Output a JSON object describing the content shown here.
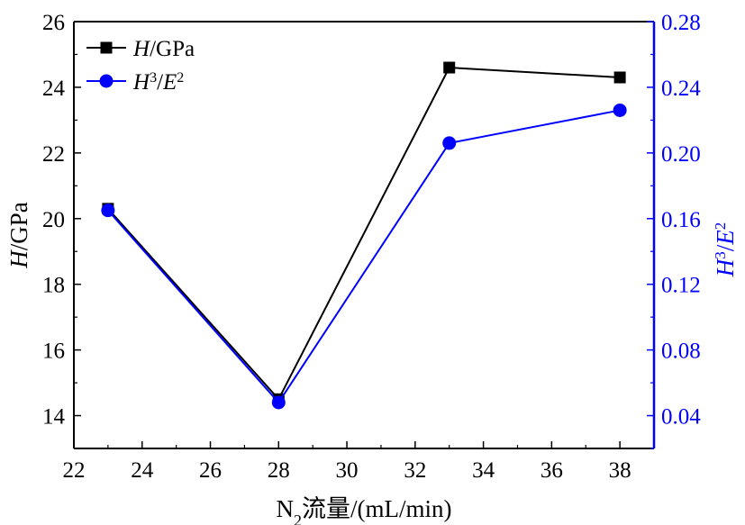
{
  "chart_data": {
    "type": "line",
    "x": [
      23,
      28,
      33,
      38
    ],
    "xlim": [
      22,
      39
    ],
    "xticks": [
      "22",
      "24",
      "26",
      "28",
      "30",
      "32",
      "34",
      "36",
      "38"
    ],
    "xlabel_parts": [
      "N",
      "2",
      "流量/(mL/min)"
    ],
    "left_axis": {
      "ylim": [
        13,
        26
      ],
      "yticks": [
        "14",
        "16",
        "18",
        "20",
        "22",
        "24",
        "26"
      ],
      "label_parts": [
        "H",
        "/GPa"
      ],
      "color": "#000000"
    },
    "right_axis": {
      "ylim": [
        0.02,
        0.28
      ],
      "yticks": [
        "0.04",
        "0.08",
        "0.12",
        "0.16",
        "0.20",
        "0.24",
        "0.28"
      ],
      "label_parts": [
        "H",
        "3",
        "/",
        "E",
        "2"
      ],
      "color": "#0000ff"
    },
    "series": [
      {
        "name_parts": [
          "H",
          "/GPa"
        ],
        "axis": "left",
        "color": "#000000",
        "marker": "square",
        "values": [
          20.3,
          14.5,
          24.6,
          24.3
        ]
      },
      {
        "name_parts": [
          "H",
          "3",
          "/",
          "E",
          "2"
        ],
        "axis": "right",
        "color": "#0000ff",
        "marker": "circle",
        "values": [
          0.165,
          0.048,
          0.206,
          0.226
        ]
      }
    ],
    "legend_position": "top-left",
    "grid": false
  }
}
